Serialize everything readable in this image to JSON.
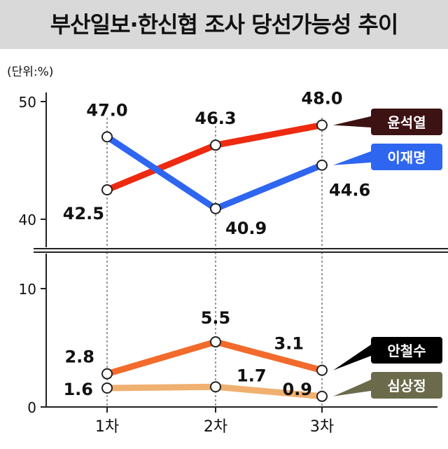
{
  "title": "부산일보·한신협 조사 당선가능성 추이",
  "unit_label": "(단위:%)",
  "chart_data": [
    {
      "type": "line",
      "panel": "upper",
      "categories": [
        "1차",
        "2차",
        "3차"
      ],
      "ylim": [
        40,
        50
      ],
      "y_ticks": [
        "50",
        "40"
      ],
      "series": [
        {
          "name": "윤석열",
          "values": [
            42.5,
            46.3,
            48.0
          ],
          "labels": [
            "42.5",
            "46.3",
            "48.0"
          ],
          "color": "#ee2a10",
          "label_color": "#3d1212"
        },
        {
          "name": "이재명",
          "values": [
            47.0,
            40.9,
            44.6
          ],
          "labels": [
            "47.0",
            "40.9",
            "44.6"
          ],
          "color": "#2f66f0",
          "label_color": "#2f66f0"
        }
      ]
    },
    {
      "type": "line",
      "panel": "lower",
      "categories": [
        "1차",
        "2차",
        "3차"
      ],
      "ylim": [
        0,
        10
      ],
      "y_ticks": [
        "10",
        "0"
      ],
      "series": [
        {
          "name": "안철수",
          "values": [
            2.8,
            5.5,
            3.1
          ],
          "labels": [
            "2.8",
            "5.5",
            "3.1"
          ],
          "color": "#f26b2c",
          "label_color": "#000000"
        },
        {
          "name": "심상정",
          "values": [
            1.6,
            1.7,
            0.9
          ],
          "labels": [
            "1.6",
            "1.7",
            "0.9"
          ],
          "color": "#f0b070",
          "label_color": "#6b6a4b"
        }
      ]
    }
  ]
}
